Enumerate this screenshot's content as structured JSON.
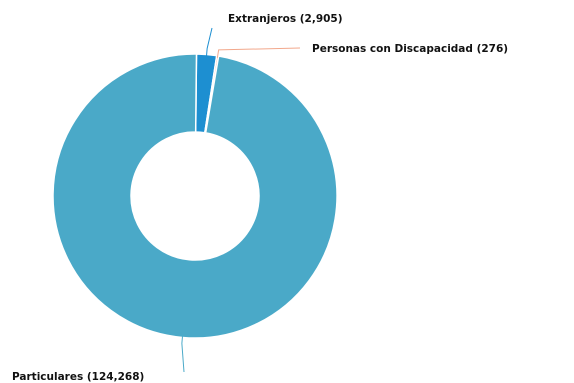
{
  "chart_data": {
    "type": "pie",
    "variant": "donut",
    "legend": "none",
    "labels": [
      "Particulares (124,268)",
      "Extranjeros (2,905)",
      "Personas con Discapacidad (276)"
    ],
    "categories": [
      "Particulares",
      "Extranjeros",
      "Personas con Discapacidad"
    ],
    "values": [
      124268,
      2905,
      276
    ],
    "colors": [
      "#4aa9c8",
      "#1d8fd1",
      "#f2a88c"
    ]
  }
}
